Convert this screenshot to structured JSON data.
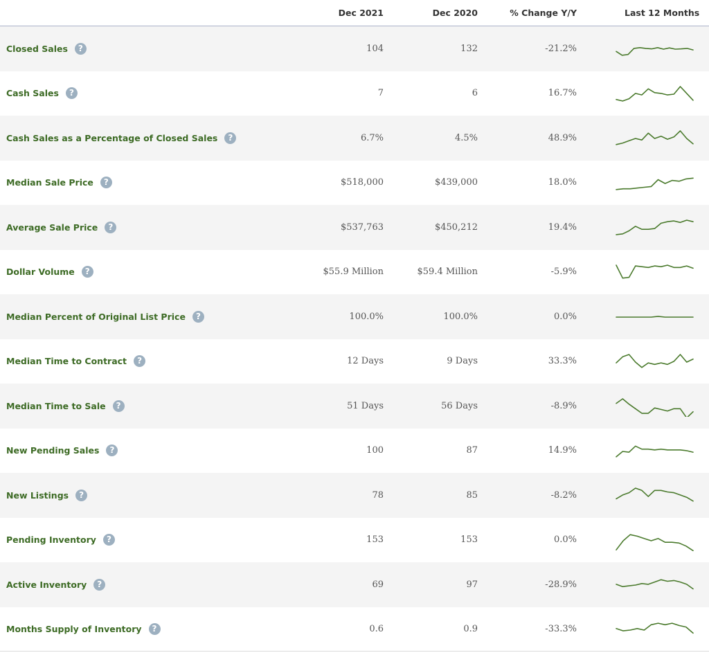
{
  "header": {
    "col_current": "Dec 2021",
    "col_prior": "Dec 2020",
    "col_change": "% Change Y/Y",
    "col_trend": "Last 12 Months"
  },
  "help_icon_glyph": "?",
  "colors": {
    "metric_label": "#3d6b25",
    "sparkline": "#4a7a2c",
    "help_icon": "#9db0c0",
    "row_alt_background": "#f4f4f4"
  },
  "rows": [
    {
      "metric": "Closed Sales",
      "current": "104",
      "prior": "132",
      "change": "-21.2%",
      "trend": [
        0.35,
        0.1,
        0.15,
        0.55,
        0.6,
        0.55,
        0.52,
        0.6,
        0.5,
        0.58,
        0.5,
        0.52,
        0.55,
        0.45
      ]
    },
    {
      "metric": "Cash Sales",
      "current": "7",
      "prior": "6",
      "change": "16.7%",
      "trend": [
        0.15,
        0.05,
        0.2,
        0.55,
        0.45,
        0.85,
        0.6,
        0.55,
        0.45,
        0.5,
        1.0,
        0.55,
        0.1
      ]
    },
    {
      "metric": "Cash Sales as a Percentage of Closed Sales",
      "current": "6.7%",
      "prior": "4.5%",
      "change": "48.9%",
      "trend": [
        0.1,
        0.2,
        0.35,
        0.5,
        0.4,
        0.85,
        0.5,
        0.65,
        0.45,
        0.6,
        1.0,
        0.5,
        0.15
      ]
    },
    {
      "metric": "Median Sale Price",
      "current": "$518,000",
      "prior": "$439,000",
      "change": "18.0%",
      "trend": [
        0.1,
        0.15,
        0.15,
        0.2,
        0.25,
        0.3,
        0.75,
        0.5,
        0.7,
        0.65,
        0.8,
        0.85
      ]
    },
    {
      "metric": "Average Sale Price",
      "current": "$537,763",
      "prior": "$450,212",
      "change": "19.4%",
      "trend": [
        0.05,
        0.1,
        0.3,
        0.6,
        0.4,
        0.4,
        0.45,
        0.8,
        0.9,
        0.95,
        0.85,
        1.0,
        0.9
      ]
    },
    {
      "metric": "Dollar Volume",
      "current": "$55.9 Million",
      "prior": "$59.4 Million",
      "change": "-5.9%",
      "trend": [
        1.0,
        0.15,
        0.2,
        0.95,
        0.9,
        0.85,
        0.95,
        0.9,
        1.0,
        0.85,
        0.85,
        0.95,
        0.8
      ]
    },
    {
      "metric": "Median Percent of Original List Price",
      "current": "100.0%",
      "prior": "100.0%",
      "change": "0.0%",
      "trend": [
        0.5,
        0.5,
        0.5,
        0.5,
        0.5,
        0.5,
        0.55,
        0.5,
        0.5,
        0.5,
        0.5,
        0.5
      ]
    },
    {
      "metric": "Median Time to Contract",
      "current": "12 Days",
      "prior": "9 Days",
      "change": "33.3%",
      "trend": [
        0.45,
        0.85,
        1.0,
        0.5,
        0.15,
        0.45,
        0.35,
        0.45,
        0.35,
        0.55,
        1.0,
        0.5,
        0.7
      ]
    },
    {
      "metric": "Median Time to Sale",
      "current": "51 Days",
      "prior": "56 Days",
      "change": "-8.9%",
      "trend": [
        0.7,
        1.0,
        0.65,
        0.35,
        0.05,
        0.05,
        0.4,
        0.3,
        0.2,
        0.35,
        0.35,
        -0.25,
        0.15
      ]
    },
    {
      "metric": "New Pending Sales",
      "current": "100",
      "prior": "87",
      "change": "14.9%",
      "trend": [
        0.15,
        0.5,
        0.45,
        0.85,
        0.65,
        0.65,
        0.6,
        0.65,
        0.6,
        0.6,
        0.6,
        0.55,
        0.45
      ]
    },
    {
      "metric": "New Listings",
      "current": "78",
      "prior": "85",
      "change": "-8.2%",
      "trend": [
        0.3,
        0.55,
        0.7,
        1.0,
        0.85,
        0.45,
        0.85,
        0.85,
        0.75,
        0.7,
        0.55,
        0.4,
        0.15
      ]
    },
    {
      "metric": "Pending Inventory",
      "current": "153",
      "prior": "153",
      "change": "0.0%",
      "trend": [
        -0.1,
        0.5,
        0.9,
        0.8,
        0.65,
        0.5,
        0.65,
        0.4,
        0.4,
        0.35,
        0.15,
        -0.15
      ]
    },
    {
      "metric": "Active Inventory",
      "current": "69",
      "prior": "97",
      "change": "-28.9%",
      "trend": [
        0.55,
        0.4,
        0.45,
        0.5,
        0.6,
        0.55,
        0.7,
        0.85,
        0.75,
        0.8,
        0.7,
        0.55,
        0.25
      ]
    },
    {
      "metric": "Months Supply of Inventory",
      "current": "0.6",
      "prior": "0.9",
      "change": "-33.3%",
      "trend": [
        0.6,
        0.45,
        0.5,
        0.6,
        0.5,
        0.85,
        0.95,
        0.85,
        0.95,
        0.8,
        0.7,
        0.3
      ]
    }
  ]
}
